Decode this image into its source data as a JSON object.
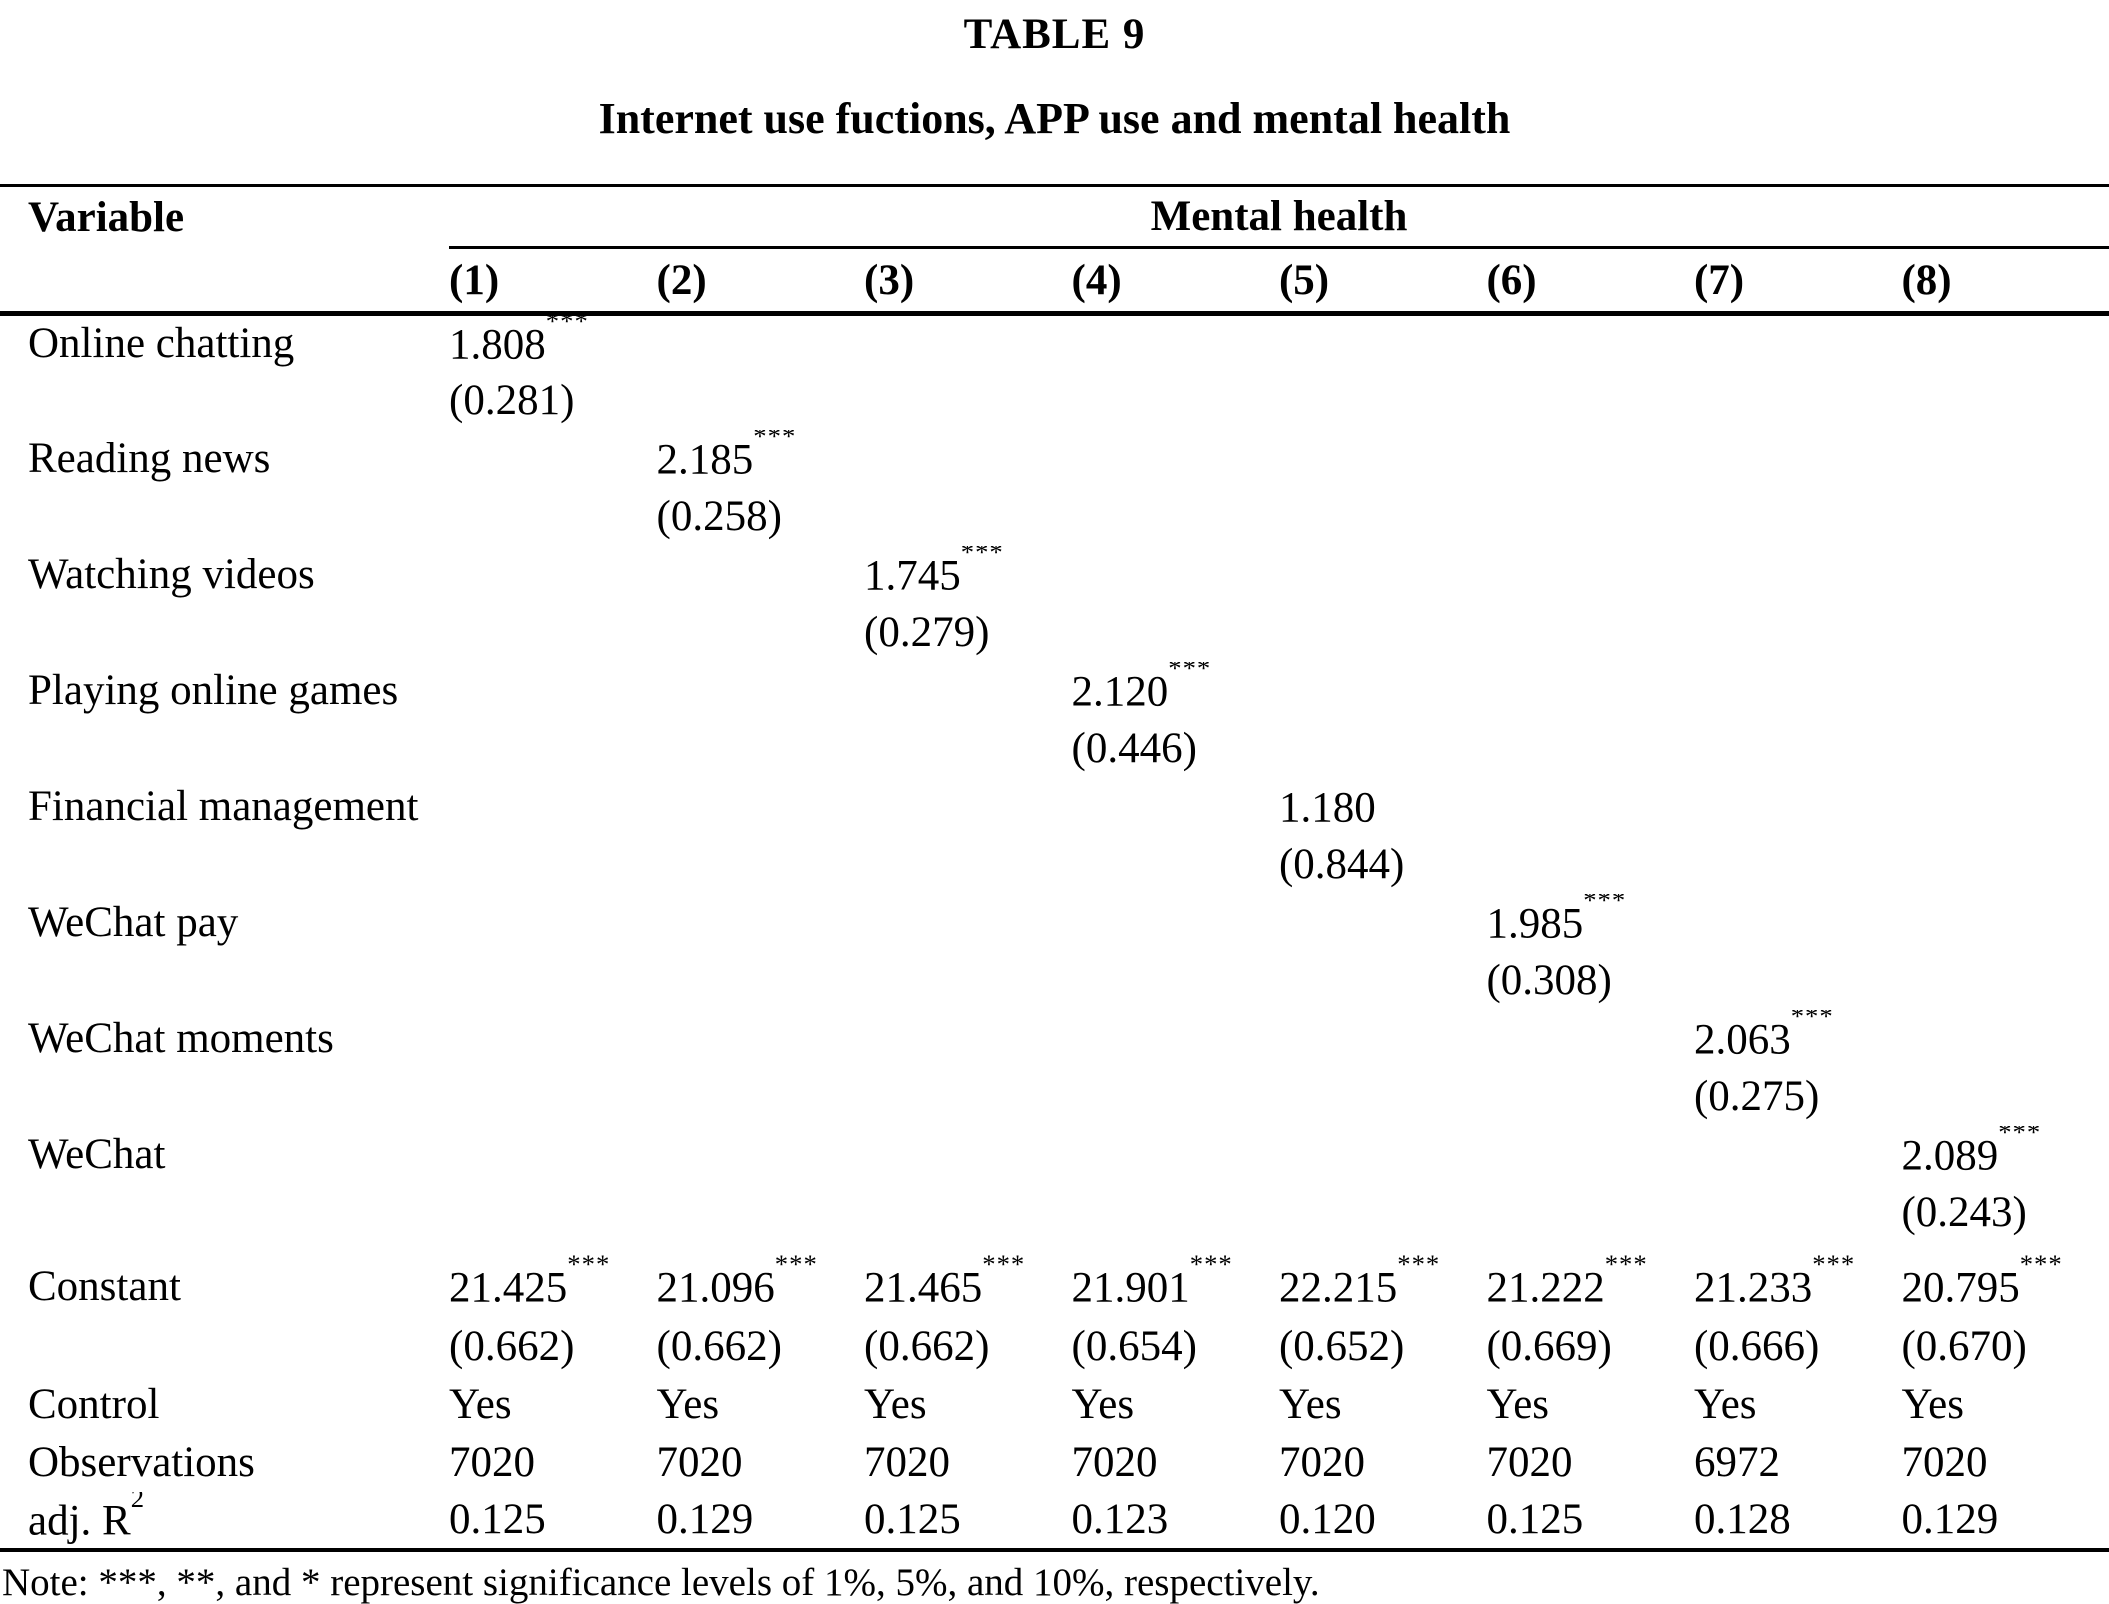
{
  "page": {
    "label": "TABLE 9",
    "title": "Internet use fuctions, APP use and mental health",
    "note": "Note: ***, **, and * represent significance levels of 1%, 5%, and 10%, respectively."
  },
  "header": {
    "variable": "Variable",
    "span": "Mental health",
    "columns": [
      "(1)",
      "(2)",
      "(3)",
      "(4)",
      "(5)",
      "(6)",
      "(7)",
      "(8)"
    ]
  },
  "variables": [
    {
      "label": "Online chatting",
      "column": "(1)",
      "coef": "1.808",
      "stars": "***",
      "se": "(0.281)"
    },
    {
      "label": "Reading news",
      "column": "(2)",
      "coef": "2.185",
      "stars": "***",
      "se": "(0.258)"
    },
    {
      "label": "Watching videos",
      "column": "(3)",
      "coef": "1.745",
      "stars": "***",
      "se": "(0.279)"
    },
    {
      "label": "Playing online games",
      "column": "(4)",
      "coef": "2.120",
      "stars": "***",
      "se": "(0.446)"
    },
    {
      "label": "Financial management",
      "column": "(5)",
      "coef": "1.180",
      "stars": "",
      "se": "(0.844)"
    },
    {
      "label": "WeChat pay",
      "column": "(6)",
      "coef": "1.985",
      "stars": "***",
      "se": "(0.308)"
    },
    {
      "label": "WeChat moments",
      "column": "(7)",
      "coef": "2.063",
      "stars": "***",
      "se": "(0.275)"
    },
    {
      "label": "WeChat",
      "column": "(8)",
      "coef": "2.089",
      "stars": "***",
      "se": "(0.243)"
    }
  ],
  "constant": {
    "label": "Constant",
    "coefs": [
      "21.425",
      "21.096",
      "21.465",
      "21.901",
      "22.215",
      "21.222",
      "21.233",
      "20.795"
    ],
    "stars": [
      "***",
      "***",
      "***",
      "***",
      "***",
      "***",
      "***",
      "***"
    ],
    "ses": [
      "(0.662)",
      "(0.662)",
      "(0.662)",
      "(0.654)",
      "(0.652)",
      "(0.669)",
      "(0.666)",
      "(0.670)"
    ]
  },
  "control": {
    "label": "Control",
    "values": [
      "Yes",
      "Yes",
      "Yes",
      "Yes",
      "Yes",
      "Yes",
      "Yes",
      "Yes"
    ]
  },
  "observations": {
    "label": "Observations",
    "values": [
      "7020",
      "7020",
      "7020",
      "7020",
      "7020",
      "7020",
      "6972",
      "7020"
    ]
  },
  "adj_r2": {
    "label_base": "adj. R",
    "label_sup": "2",
    "values": [
      "0.125",
      "0.129",
      "0.125",
      "0.123",
      "0.120",
      "0.125",
      "0.128",
      "0.129"
    ]
  }
}
